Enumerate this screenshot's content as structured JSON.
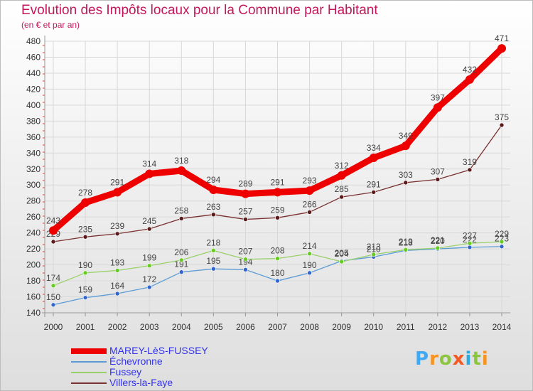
{
  "title": "Evolution des Impôts locaux pour la Commune par Habitant",
  "subtitle": "(en € et par an)",
  "logo": {
    "text": "Proxiti"
  },
  "colors": {
    "title": "#c2185b",
    "axis": "#999999",
    "grid": "#d8d8d8",
    "tick": "#333333",
    "point_label": "#444444",
    "left_axis_dash": "#e53935"
  },
  "chart_data": {
    "type": "line",
    "title": "Evolution des Impôts locaux pour la Commune par Habitant",
    "subtitle": "(en € et par an)",
    "xlabel": "",
    "ylabel": "",
    "ylim": [
      140,
      480
    ],
    "ytick_step": 20,
    "grid": true,
    "legend_position": "bottom-left",
    "x": [
      2000,
      2001,
      2002,
      2003,
      2004,
      2005,
      2006,
      2007,
      2008,
      2009,
      2010,
      2011,
      2012,
      2013,
      2014
    ],
    "series": [
      {
        "name": "MAREY-LèS-FUSSEY",
        "color": "#ee0000",
        "text_color": "#3333ee",
        "marker_color": "#ee0000",
        "emphasis": "thick",
        "values": [
          243,
          278,
          291,
          314,
          318,
          294,
          289,
          291,
          293,
          312,
          334,
          349,
          397,
          432,
          471
        ]
      },
      {
        "name": "Échevronne",
        "color": "#5b9bd5",
        "text_color": "#3333ee",
        "marker_color": "#3366cc",
        "emphasis": "thin",
        "values": [
          150,
          159,
          164,
          172,
          191,
          195,
          194,
          180,
          190,
          205,
          210,
          218,
          220,
          222,
          223
        ]
      },
      {
        "name": "Fussey",
        "color": "#9ad06a",
        "text_color": "#3333ee",
        "marker_color": "#66cc22",
        "emphasis": "thin",
        "values": [
          174,
          190,
          193,
          199,
          206,
          218,
          207,
          208,
          214,
          204,
          213,
          219,
          221,
          227,
          229
        ]
      },
      {
        "name": "Villers-la-Faye",
        "color": "#7a3030",
        "text_color": "#3333ee",
        "marker_color": "#5a1a1a",
        "emphasis": "thin",
        "values": [
          229,
          235,
          239,
          245,
          258,
          263,
          257,
          259,
          266,
          285,
          291,
          303,
          307,
          319,
          375
        ]
      }
    ]
  }
}
